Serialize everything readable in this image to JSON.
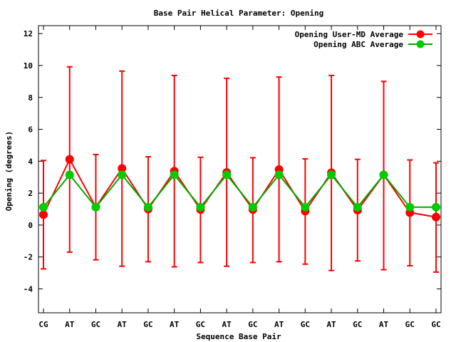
{
  "chart_data": {
    "type": "line",
    "title": "Base Pair Helical Parameter: Opening",
    "xlabel": "Sequence Base Pair",
    "ylabel": "Opening (degrees)",
    "categories": [
      "CG",
      "AT",
      "GC",
      "AT",
      "GC",
      "AT",
      "GC",
      "AT",
      "GC",
      "AT",
      "GC",
      "AT",
      "GC",
      "AT",
      "GC",
      "GC"
    ],
    "ylim": [
      -5.5,
      12.5
    ],
    "yticks": [
      -4,
      -2,
      0,
      2,
      4,
      6,
      8,
      10,
      12
    ],
    "grid": false,
    "legend_position": "top-right",
    "series": [
      {
        "name": "Opening User-MD Average",
        "color": "#ff0000",
        "marker_color": "#ff0000",
        "values": [
          0.65,
          4.12,
          1.13,
          3.55,
          1.0,
          3.38,
          0.97,
          3.3,
          0.97,
          3.48,
          0.87,
          3.28,
          0.93,
          3.15,
          0.78,
          0.5
        ],
        "error_low": [
          -2.75,
          -1.7,
          -2.18,
          -2.58,
          -2.3,
          -2.62,
          -2.35,
          -2.58,
          -2.35,
          -2.3,
          -2.45,
          -2.85,
          -2.25,
          -2.8,
          -2.55,
          -2.95
        ],
        "error_high": [
          4.05,
          9.92,
          4.42,
          9.65,
          4.28,
          9.38,
          4.25,
          9.2,
          4.22,
          9.28,
          4.15,
          9.38,
          4.12,
          9.0,
          4.08,
          3.9
        ]
      },
      {
        "name": "Opening ABC Average",
        "color": "#00aa00",
        "marker_color": "#00cc00",
        "values": [
          1.12,
          3.15,
          1.12,
          3.15,
          1.12,
          3.15,
          1.12,
          3.15,
          1.12,
          3.15,
          1.12,
          3.15,
          1.12,
          3.15,
          1.12,
          1.12
        ]
      }
    ]
  }
}
